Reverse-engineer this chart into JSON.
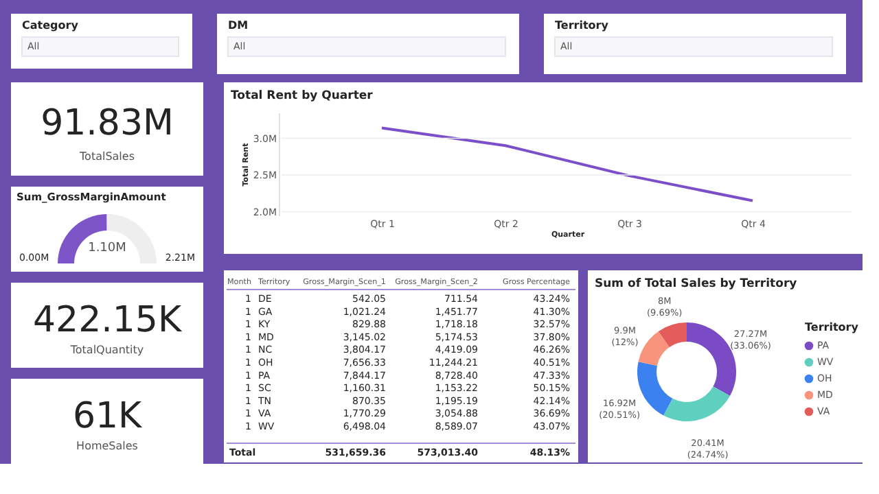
{
  "chart_data": [
    {
      "type": "other",
      "title": "Category",
      "annotations": [
        "All"
      ]
    },
    {
      "type": "other",
      "title": "DM",
      "annotations": [
        "All"
      ]
    },
    {
      "type": "other",
      "title": "Territory",
      "annotations": [
        "All"
      ]
    },
    {
      "type": "other",
      "title": "91.83M",
      "subtitle": "TotalSales"
    },
    {
      "type": "donut",
      "title": "Sum_GrossMarginAmount",
      "categories": [
        null,
        null
      ],
      "values": [
        1.1,
        1.11
      ],
      "colors": [
        "#7e55c9",
        "#eeeeee"
      ],
      "value_labels": [
        "1.10M",
        null
      ],
      "annotations": [
        "0.00M",
        "2.21M"
      ]
    },
    {
      "type": "other",
      "title": "422.15K",
      "subtitle": "TotalQuantity"
    },
    {
      "type": "other",
      "title": "61K",
      "subtitle": "HomeSales"
    },
    {
      "type": "line",
      "title": "Total Rent by Quarter",
      "xlabel": "Quarter",
      "ylabel": "Total Rent",
      "categories": [
        "Qtr 1",
        "Qtr 2",
        "Qtr 3",
        "Qtr 4"
      ],
      "series": [
        {
          "color": "#7b4fc9",
          "values": [
            3140000,
            2900000,
            2490000,
            2150000
          ]
        }
      ],
      "ylim": [
        1950000,
        3350000
      ],
      "yticks": [
        {
          "value": 2000000,
          "label": "2.0M"
        },
        {
          "value": 2500000,
          "label": "2.5M"
        },
        {
          "value": 3000000,
          "label": "3.0M"
        }
      ],
      "grid": "y",
      "marker": "none",
      "line_style": "solid"
    },
    {
      "type": "other",
      "categories": [
        "Month",
        "Territory",
        "Gross_Margin_Scen_1",
        "Gross_Margin_Scen_2",
        "Gross Percentage"
      ],
      "cell_labels": [
        [
          "1",
          "DE",
          "542.05",
          "711.54",
          "43.24%"
        ],
        [
          "1",
          "GA",
          "1,021.24",
          "1,451.77",
          "41.30%"
        ],
        [
          "1",
          "KY",
          "829.88",
          "1,718.18",
          "32.57%"
        ],
        [
          "1",
          "MD",
          "3,145.02",
          "5,174.53",
          "37.80%"
        ],
        [
          "1",
          "NC",
          "3,804.17",
          "4,419.09",
          "46.26%"
        ],
        [
          "1",
          "OH",
          "7,656.33",
          "11,244.21",
          "40.51%"
        ],
        [
          "1",
          "PA",
          "7,844.17",
          "8,728.40",
          "47.33%"
        ],
        [
          "1",
          "SC",
          "1,160.31",
          "1,153.22",
          "50.15%"
        ],
        [
          "1",
          "TN",
          "870.35",
          "1,195.19",
          "42.14%"
        ],
        [
          "1",
          "VA",
          "1,770.29",
          "3,054.88",
          "36.69%"
        ],
        [
          "1",
          "WV",
          "6,498.04",
          "8,589.07",
          "43.07%"
        ],
        [
          "Total",
          null,
          "531,659.36",
          "573,013.40",
          "48.13%"
        ]
      ]
    },
    {
      "type": "donut",
      "title": "Sum of Total Sales by Territory",
      "legend_title": "Territory",
      "legend": "right",
      "categories": [
        "PA",
        "WV",
        "OH",
        "MD",
        "VA"
      ],
      "values": [
        33.06,
        24.74,
        20.51,
        12,
        9.69
      ],
      "colors": [
        "#7a4bc4",
        "#5fcfc0",
        "#3b82f0",
        "#f8937c",
        "#e35b5b"
      ],
      "value_labels": [
        "27.27M (33.06%)",
        "20.41M (24.74%)",
        "16.92M (20.51%)",
        "9.9M (12%)",
        "8M (9.69%)"
      ]
    }
  ]
}
